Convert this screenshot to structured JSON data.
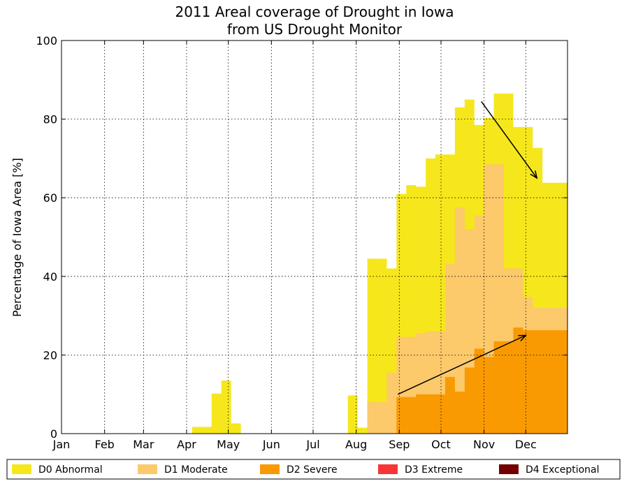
{
  "chart_data": {
    "type": "area",
    "title": [
      "2011 Areal coverage of Drought in Iowa",
      "from US Drought Monitor"
    ],
    "ylabel": "Percentage of Iowa Area [%]",
    "xlabel": "",
    "ylim": [
      0,
      100
    ],
    "yticks": [
      0,
      20,
      40,
      60,
      80,
      100
    ],
    "xlim": [
      "2011-01-01",
      "2011-12-31"
    ],
    "month_ticks": [
      {
        "date": "2011-01-01",
        "label": "Jan"
      },
      {
        "date": "2011-02-01",
        "label": "Feb"
      },
      {
        "date": "2011-03-01",
        "label": "Mar"
      },
      {
        "date": "2011-04-01",
        "label": "Apr"
      },
      {
        "date": "2011-05-01",
        "label": "May"
      },
      {
        "date": "2011-06-01",
        "label": "Jun"
      },
      {
        "date": "2011-07-01",
        "label": "Jul"
      },
      {
        "date": "2011-08-01",
        "label": "Aug"
      },
      {
        "date": "2011-09-01",
        "label": "Sep"
      },
      {
        "date": "2011-10-01",
        "label": "Oct"
      },
      {
        "date": "2011-11-01",
        "label": "Nov"
      },
      {
        "date": "2011-12-01",
        "label": "Dec"
      }
    ],
    "grid": true,
    "legend_position": "bottom",
    "step": "post",
    "series": [
      {
        "name": "D0 Abnormal",
        "color": "#f5e71c",
        "points": [
          [
            "2011-04-05",
            1.7
          ],
          [
            "2011-04-19",
            10.2
          ],
          [
            "2011-04-26",
            13.5
          ],
          [
            "2011-05-03",
            2.6
          ],
          [
            "2011-05-10",
            0
          ],
          [
            "2011-07-26",
            9.7
          ],
          [
            "2011-08-02",
            1.5
          ],
          [
            "2011-08-09",
            44.5
          ],
          [
            "2011-08-23",
            42
          ],
          [
            "2011-08-30",
            61
          ],
          [
            "2011-09-06",
            63.2
          ],
          [
            "2011-09-13",
            62.8
          ],
          [
            "2011-09-20",
            70
          ],
          [
            "2011-09-27",
            71
          ],
          [
            "2011-10-11",
            83
          ],
          [
            "2011-10-18",
            85
          ],
          [
            "2011-10-25",
            78.5
          ],
          [
            "2011-11-01",
            80.3
          ],
          [
            "2011-11-08",
            86.5
          ],
          [
            "2011-11-22",
            78
          ],
          [
            "2011-12-06",
            72.7
          ],
          [
            "2011-12-13",
            63.8
          ],
          [
            "2011-12-31",
            63.8
          ]
        ]
      },
      {
        "name": "D1 Moderate",
        "color": "#fcc96b",
        "points": [
          [
            "2011-08-09",
            8
          ],
          [
            "2011-08-23",
            15.5
          ],
          [
            "2011-08-30",
            24.6
          ],
          [
            "2011-09-13",
            25.6
          ],
          [
            "2011-09-20",
            26
          ],
          [
            "2011-10-04",
            43.2
          ],
          [
            "2011-10-11",
            57.5
          ],
          [
            "2011-10-18",
            52
          ],
          [
            "2011-10-25",
            55.5
          ],
          [
            "2011-11-01",
            68.5
          ],
          [
            "2011-11-15",
            42
          ],
          [
            "2011-11-29",
            34.8
          ],
          [
            "2011-12-06",
            32
          ],
          [
            "2011-12-31",
            32
          ]
        ]
      },
      {
        "name": "D2 Severe",
        "color": "#fa9a02",
        "points": [
          [
            "2011-08-30",
            9.3
          ],
          [
            "2011-09-13",
            10
          ],
          [
            "2011-10-04",
            14.4
          ],
          [
            "2011-10-11",
            10.7
          ],
          [
            "2011-10-18",
            16.8
          ],
          [
            "2011-10-25",
            21.6
          ],
          [
            "2011-11-01",
            19.5
          ],
          [
            "2011-11-08",
            23.5
          ],
          [
            "2011-11-22",
            27
          ],
          [
            "2011-11-29",
            26.3
          ],
          [
            "2011-12-31",
            26.3
          ]
        ]
      },
      {
        "name": "D3 Extreme",
        "color": "#f73535",
        "points": []
      },
      {
        "name": "D4 Exceptional",
        "color": "#720000",
        "points": []
      }
    ],
    "annotations": [
      {
        "type": "arrow",
        "from": [
          "2011-10-30",
          84.5
        ],
        "to": [
          "2011-12-09",
          65
        ]
      },
      {
        "type": "arrow",
        "from": [
          "2011-08-31",
          10
        ],
        "to": [
          "2011-12-01",
          25
        ]
      }
    ]
  }
}
